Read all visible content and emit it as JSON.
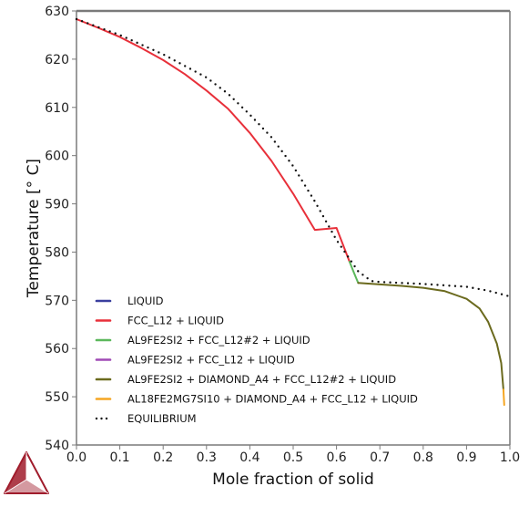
{
  "chart_data": {
    "type": "line",
    "title": "",
    "xlabel": "Mole fraction of solid",
    "ylabel": "Temperature [° C]",
    "xlim": [
      0.0,
      1.0
    ],
    "ylim": [
      540,
      630
    ],
    "x_ticks": [
      "0.0",
      "0.1",
      "0.2",
      "0.3",
      "0.4",
      "0.5",
      "0.6",
      "0.7",
      "0.8",
      "0.9",
      "1.0"
    ],
    "y_ticks": [
      "540",
      "550",
      "560",
      "570",
      "580",
      "590",
      "600",
      "610",
      "620",
      "630"
    ],
    "grid": false,
    "legend_position": "bottom-left",
    "series": [
      {
        "name": "LIQUID",
        "color": "#3a3f9e",
        "style": "solid",
        "x": [
          0.0,
          0.001
        ],
        "y": [
          628.3,
          628.3
        ]
      },
      {
        "name": "FCC_L12 + LIQUID",
        "color": "#e8303a",
        "style": "solid",
        "x": [
          0.0,
          0.05,
          0.1,
          0.15,
          0.2,
          0.25,
          0.3,
          0.35,
          0.4,
          0.45,
          0.5,
          0.55,
          0.6,
          0.63
        ],
        "y": [
          628.3,
          626.5,
          624.6,
          622.3,
          619.8,
          616.9,
          613.5,
          609.7,
          604.7,
          598.9,
          592.1,
          584.6,
          585.0,
          578.0
        ]
      },
      {
        "name": "AL9FE2SI2 + FCC_L12#2 + LIQUID",
        "color": "#5cb85c",
        "style": "solid",
        "x": [
          0.63,
          0.64,
          0.65
        ],
        "y": [
          578.0,
          575.8,
          573.6
        ]
      },
      {
        "name": "AL9FE2SI2 + FCC_L12 + LIQUID",
        "color": "#a04ab5",
        "style": "solid",
        "x": [],
        "y": []
      },
      {
        "name": "AL9FE2SI2 + DIAMOND_A4 + FCC_L12#2 + LIQUID",
        "color": "#6b6a1e",
        "style": "solid",
        "x": [
          0.65,
          0.7,
          0.75,
          0.8,
          0.85,
          0.9,
          0.93,
          0.95,
          0.97,
          0.98,
          0.985
        ],
        "y": [
          573.6,
          573.3,
          573.0,
          572.6,
          571.9,
          570.3,
          568.3,
          565.5,
          561.0,
          557.0,
          551.5
        ]
      },
      {
        "name": "AL18FE2MG7SI10 + DIAMOND_A4 + FCC_L12 + LIQUID",
        "color": "#f5a623",
        "style": "solid",
        "x": [
          0.985,
          0.986,
          0.987
        ],
        "y": [
          551.5,
          550.0,
          548.3
        ]
      },
      {
        "name": "EQUILIBRIUM",
        "color": "#111111",
        "style": "dotted",
        "x": [
          0.0,
          0.1,
          0.2,
          0.3,
          0.35,
          0.4,
          0.45,
          0.5,
          0.55,
          0.6,
          0.65,
          0.68,
          0.7,
          0.8,
          0.9,
          0.95,
          1.0
        ],
        "y": [
          628.3,
          625.0,
          621.0,
          616.2,
          612.8,
          608.5,
          603.8,
          597.8,
          590.5,
          582.5,
          576.0,
          574.0,
          573.8,
          573.4,
          572.8,
          572.0,
          570.8
        ]
      }
    ]
  },
  "legend": {
    "items": [
      {
        "label": "LIQUID",
        "color": "#3a3f9e",
        "style": "solid"
      },
      {
        "label": "FCC_L12 + LIQUID",
        "color": "#e8303a",
        "style": "solid"
      },
      {
        "label": "AL9FE2SI2 + FCC_L12#2 + LIQUID",
        "color": "#5cb85c",
        "style": "solid"
      },
      {
        "label": "AL9FE2SI2 + FCC_L12 + LIQUID",
        "color": "#a04ab5",
        "style": "solid"
      },
      {
        "label": "AL9FE2SI2 + DIAMOND_A4 + FCC_L12#2 + LIQUID",
        "color": "#6b6a1e",
        "style": "solid"
      },
      {
        "label": "AL18FE2MG7SI10 + DIAMOND_A4 + FCC_L12 + LIQUID",
        "color": "#f5a623",
        "style": "solid"
      },
      {
        "label": "EQUILIBRIUM",
        "color": "#111111",
        "style": "dotted"
      }
    ]
  },
  "logo": {
    "name": "triangle-logo-icon",
    "color": "#a01c2c"
  }
}
